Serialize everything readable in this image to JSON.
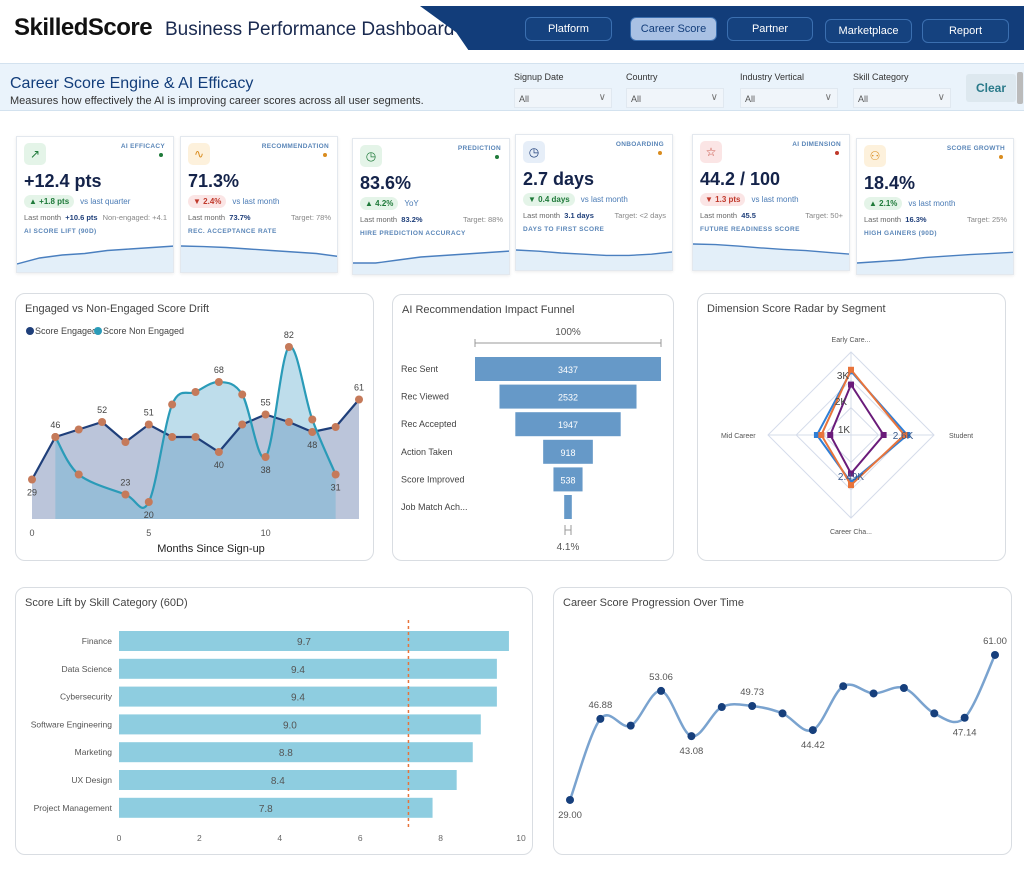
{
  "header": {
    "logo": "SkilledScore",
    "title": "Business Performance Dashboard",
    "nav": [
      {
        "label": "Platform",
        "active": false
      },
      {
        "label": "Career Score",
        "active": true
      },
      {
        "label": "Partner",
        "active": false
      },
      {
        "label": "Marketplace",
        "active": false
      },
      {
        "label": "Report",
        "active": false
      }
    ]
  },
  "filters": {
    "title": "Career Score Engine & AI Efficacy",
    "subtitle": "Measures how effectively the AI is improving career scores across all user segments.",
    "items": [
      {
        "label": "Signup Date",
        "value": "All"
      },
      {
        "label": "Country",
        "value": "All"
      },
      {
        "label": "Industry Vertical",
        "value": "All"
      },
      {
        "label": "Skill Category",
        "value": "All"
      }
    ],
    "clear_label": "Clear"
  },
  "kpis": [
    {
      "tag": "AI EFFICACY",
      "icon": "trending-up-icon",
      "glyph": "↗",
      "color": "#1f7a3a",
      "dot": "#1f7a3a",
      "value": "+12.4 pts",
      "change": "▲ +1.8 pts",
      "dir": "up",
      "compare": "vs last quarter",
      "last_label": "Last month",
      "last_value": "+10.6 pts",
      "target": "Non-engaged: +4.1",
      "name": "AI SCORE LIFT (90D)",
      "spark": [
        2,
        4,
        5,
        5.5,
        6.5,
        7,
        7.5,
        8
      ]
    },
    {
      "tag": "RECOMMENDATION",
      "icon": "activity-icon",
      "glyph": "∿",
      "color": "#d98c1f",
      "dot": "#d98c1f",
      "value": "71.3%",
      "change": "▼ 2.4%",
      "dir": "dn",
      "compare": "vs last month",
      "last_label": "Last month",
      "last_value": "73.7%",
      "target": "Target: 78%",
      "name": "REC. ACCEPTANCE RATE",
      "spark": [
        8,
        7.8,
        7.5,
        7,
        6.5,
        6,
        5.5,
        4.5
      ]
    },
    {
      "tag": "PREDICTION",
      "icon": "clock-icon",
      "glyph": "◷",
      "color": "#1f7a3a",
      "dot": "#1f7a3a",
      "value": "83.6%",
      "change": "▲ 4.2%",
      "dir": "up",
      "compare": "YoY",
      "last_label": "Last month",
      "last_value": "83.2%",
      "target": "Target: 88%",
      "name": "HIRE PREDICTION ACCURACY",
      "spark": [
        3,
        3,
        4,
        5,
        5.5,
        6,
        6.5,
        7
      ]
    },
    {
      "tag": "ONBOARDING",
      "icon": "clock-icon",
      "glyph": "◷",
      "color": "#1f3f7a",
      "dot": "#d98c1f",
      "value": "2.7 days",
      "change": "▼ 0.4 days",
      "dir": "gd",
      "compare": "vs last month",
      "last_label": "Last month",
      "last_value": "3.1 days",
      "target": "Target: <2 days",
      "name": "DAYS TO FIRST SCORE",
      "spark": [
        6,
        5.6,
        5,
        4.6,
        4.2,
        4.2,
        4.6,
        5.4
      ]
    },
    {
      "tag": "AI DIMENSION",
      "icon": "star-icon",
      "glyph": "☆",
      "color": "#c0392b",
      "dot": "#c0392b",
      "value": "44.2 / 100",
      "change": "▼ 1.3 pts",
      "dir": "dn",
      "compare": "vs last month",
      "last_label": "Last month",
      "last_value": "45.5",
      "target": "Target: 50+",
      "name": "FUTURE READINESS SCORE",
      "spark": [
        8,
        7.8,
        7.3,
        6.7,
        6.2,
        5.8,
        5.2,
        4.6
      ]
    },
    {
      "tag": "SCORE GROWTH",
      "icon": "user-plus-icon",
      "glyph": "⚇",
      "color": "#d98c1f",
      "dot": "#d98c1f",
      "value": "18.4%",
      "change": "▲ 2.1%",
      "dir": "up",
      "compare": "vs last month",
      "last_label": "Last month",
      "last_value": "16.3%",
      "target": "Target: 25%",
      "name": "HIGH GAINERS (90D)",
      "spark": [
        3,
        3.5,
        4,
        4.8,
        5.3,
        5.8,
        6.2,
        6.6
      ]
    }
  ],
  "chart_data": [
    {
      "id": "drift",
      "type": "area",
      "title": "Engaged vs Non-Engaged Score Drift",
      "xlabel": "Months Since Sign-up",
      "xticks": [
        0,
        5,
        10
      ],
      "ylim": [
        18,
        88
      ],
      "series": [
        {
          "name": "Score Engaged",
          "color": "#1f3f7a",
          "x": [
            0,
            1,
            2,
            3,
            4,
            5,
            6,
            7,
            8,
            9,
            10,
            11,
            12,
            13,
            14
          ],
          "values": [
            29,
            46,
            49,
            52,
            44,
            51,
            46,
            46,
            40,
            51,
            55,
            52,
            48,
            50,
            61
          ]
        },
        {
          "name": "Score Non Engaged",
          "color": "#2a9bb8",
          "x": [
            1,
            2,
            4,
            5,
            6,
            7,
            8,
            9,
            10,
            11,
            12,
            13
          ],
          "values": [
            46,
            31,
            23,
            20,
            59,
            64,
            68,
            63,
            38,
            82,
            53,
            31
          ]
        }
      ],
      "labels": [
        {
          "x": 0,
          "v": 29
        },
        {
          "x": 1,
          "v": 46
        },
        {
          "x": 3,
          "v": 52
        },
        {
          "x": 4,
          "v": 23
        },
        {
          "x": 5,
          "v": 51
        },
        {
          "x": 5,
          "v": 20
        },
        {
          "x": 8,
          "v": 68
        },
        {
          "x": 8,
          "v": 40
        },
        {
          "x": 10,
          "v": 55
        },
        {
          "x": 10,
          "v": 38
        },
        {
          "x": 11,
          "v": 82
        },
        {
          "x": 12,
          "v": 48
        },
        {
          "x": 13,
          "v": 31
        },
        {
          "x": 14,
          "v": 61
        }
      ]
    },
    {
      "id": "funnel",
      "type": "bar",
      "title": "AI Recommendation Impact Funnel",
      "top_label": "100%",
      "bottom_label": "4.1%",
      "categories": [
        "Rec Sent",
        "Rec Viewed",
        "Rec Accepted",
        "Action Taken",
        "Score Improved",
        "Job Match Ach..."
      ],
      "values": [
        3437,
        2532,
        1947,
        918,
        538,
        141
      ],
      "show_value": [
        true,
        true,
        true,
        true,
        true,
        false
      ],
      "color": "#6699c8"
    },
    {
      "id": "radar",
      "type": "radar",
      "title": "Dimension Score Radar by Segment",
      "axes": [
        "Early Care...",
        "Student",
        "Career Cha...",
        "Mid Career"
      ],
      "tick_labels": [
        "1K",
        "2K",
        "3K"
      ],
      "point_labels": [
        "2.49K",
        "2.6K"
      ],
      "series": [
        {
          "color": "#2f7fd6",
          "values": [
            2950,
            2700,
            2400,
            1950
          ]
        },
        {
          "color": "#e8743b",
          "values": [
            3000,
            2600,
            2490,
            1800
          ]
        },
        {
          "color": "#6a1b7a",
          "values": [
            2500,
            1900,
            2100,
            1500
          ]
        }
      ]
    },
    {
      "id": "skill",
      "type": "bar",
      "title": "Score Lift by Skill Category (60D)",
      "categories": [
        "Finance",
        "Data Science",
        "Cybersecurity",
        "Software Engineering",
        "Marketing",
        "UX Design",
        "Project Management"
      ],
      "values": [
        9.7,
        9.4,
        9.4,
        9.0,
        8.8,
        8.4,
        7.8
      ],
      "value_labels": [
        "9.7",
        "9.4",
        "9.4",
        "9.0",
        "8.8",
        "8.4",
        "7.8"
      ],
      "xlim": [
        0,
        10
      ],
      "xticks": [
        0,
        2,
        4,
        6,
        8,
        10
      ],
      "reference_line": 7.2,
      "color": "#8ecde0",
      "ref_color": "#e8743b"
    },
    {
      "id": "prog",
      "type": "line",
      "title": "Career Score Progression Over Time",
      "values": [
        29.0,
        46.88,
        45.4,
        53.06,
        43.08,
        49.5,
        49.73,
        48.1,
        44.42,
        54.1,
        52.5,
        53.7,
        48.1,
        47.14,
        61.0
      ],
      "labeled": {
        "0": "29.00",
        "1": "46.88",
        "3": "53.06",
        "4": "43.08",
        "6": "49.73",
        "8": "44.42",
        "13": "47.14",
        "14": "61.00"
      },
      "label_below": [
        0,
        4,
        8,
        13
      ],
      "ylim": [
        27,
        64
      ],
      "color": "#7aa3cf",
      "point_color": "#163f7c"
    }
  ]
}
